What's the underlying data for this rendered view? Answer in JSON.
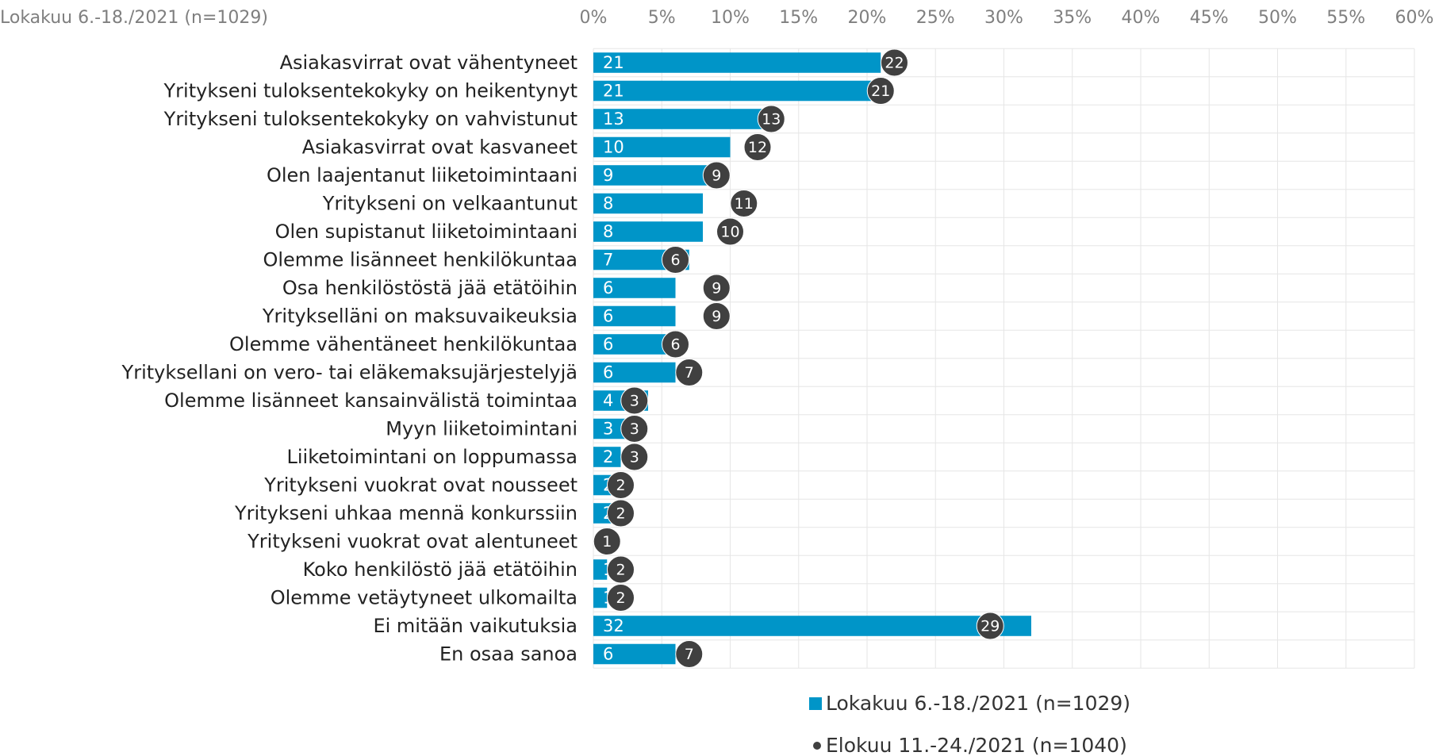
{
  "chart_data": {
    "type": "bar",
    "subtitle": "Lokakuu 6.-18./2021 (n=1029)",
    "categories": [
      "Asiakasvirrat ovat vähentyneet",
      "Yritykseni tuloksentekokyky on heikentynyt",
      "Yritykseni tuloksentekokyky on vahvistunut",
      "Asiakasvirrat ovat kasvaneet",
      "Olen laajentanut liiketoimintaani",
      "Yritykseni on velkaantunut",
      "Olen supistanut liiketoimintaani",
      "Olemme lisänneet henkilökuntaa",
      "Osa henkilöstöstä jää etätöihin",
      "Yritykselläni on maksuvaikeuksia",
      "Olemme vähentäneet henkilökuntaa",
      "Yrityksellani on vero- tai eläkemaksujärjestelyjä",
      "Olemme lisänneet kansainvälistä toimintaa",
      "Myyn liiketoimintani",
      "Liiketoimintani on loppumassa",
      "Yritykseni vuokrat ovat nousseet",
      "Yritykseni uhkaa mennä konkurssiin",
      "Yritykseni vuokrat ovat alentuneet",
      "Koko henkilöstö jää etätöihin",
      "Olemme vetäytyneet ulkomailta",
      "Ei mitään vaikutuksia",
      "En osaa sanoa"
    ],
    "series": [
      {
        "name": "Lokakuu 6.-18./2021 (n=1029)",
        "color": "#0095c8",
        "mark": "bar",
        "values": [
          21,
          21,
          13,
          10,
          9,
          8,
          8,
          7,
          6,
          6,
          6,
          6,
          4,
          3,
          2,
          2,
          2,
          0,
          1,
          1,
          32,
          6
        ]
      },
      {
        "name": "Elokuu 11.-24./2021 (n=1040)",
        "color": "#404040",
        "mark": "dot",
        "values": [
          22,
          21,
          13,
          12,
          9,
          11,
          10,
          6,
          9,
          9,
          6,
          7,
          3,
          3,
          3,
          2,
          2,
          1,
          2,
          2,
          29,
          7
        ]
      }
    ],
    "xlim": [
      0,
      60
    ],
    "xticks": [
      {
        "value": 0,
        "label": "0%"
      },
      {
        "value": 5,
        "label": "5%"
      },
      {
        "value": 10,
        "label": "10%"
      },
      {
        "value": 15,
        "label": "15%"
      },
      {
        "value": 20,
        "label": "20%"
      },
      {
        "value": 25,
        "label": "25%"
      },
      {
        "value": 30,
        "label": "30%"
      },
      {
        "value": 35,
        "label": "35%"
      },
      {
        "value": 40,
        "label": "40%"
      },
      {
        "value": 45,
        "label": "45%"
      },
      {
        "value": 50,
        "label": "50%"
      },
      {
        "value": 55,
        "label": "55%"
      },
      {
        "value": 60,
        "label": "60%"
      }
    ],
    "grid": true
  }
}
